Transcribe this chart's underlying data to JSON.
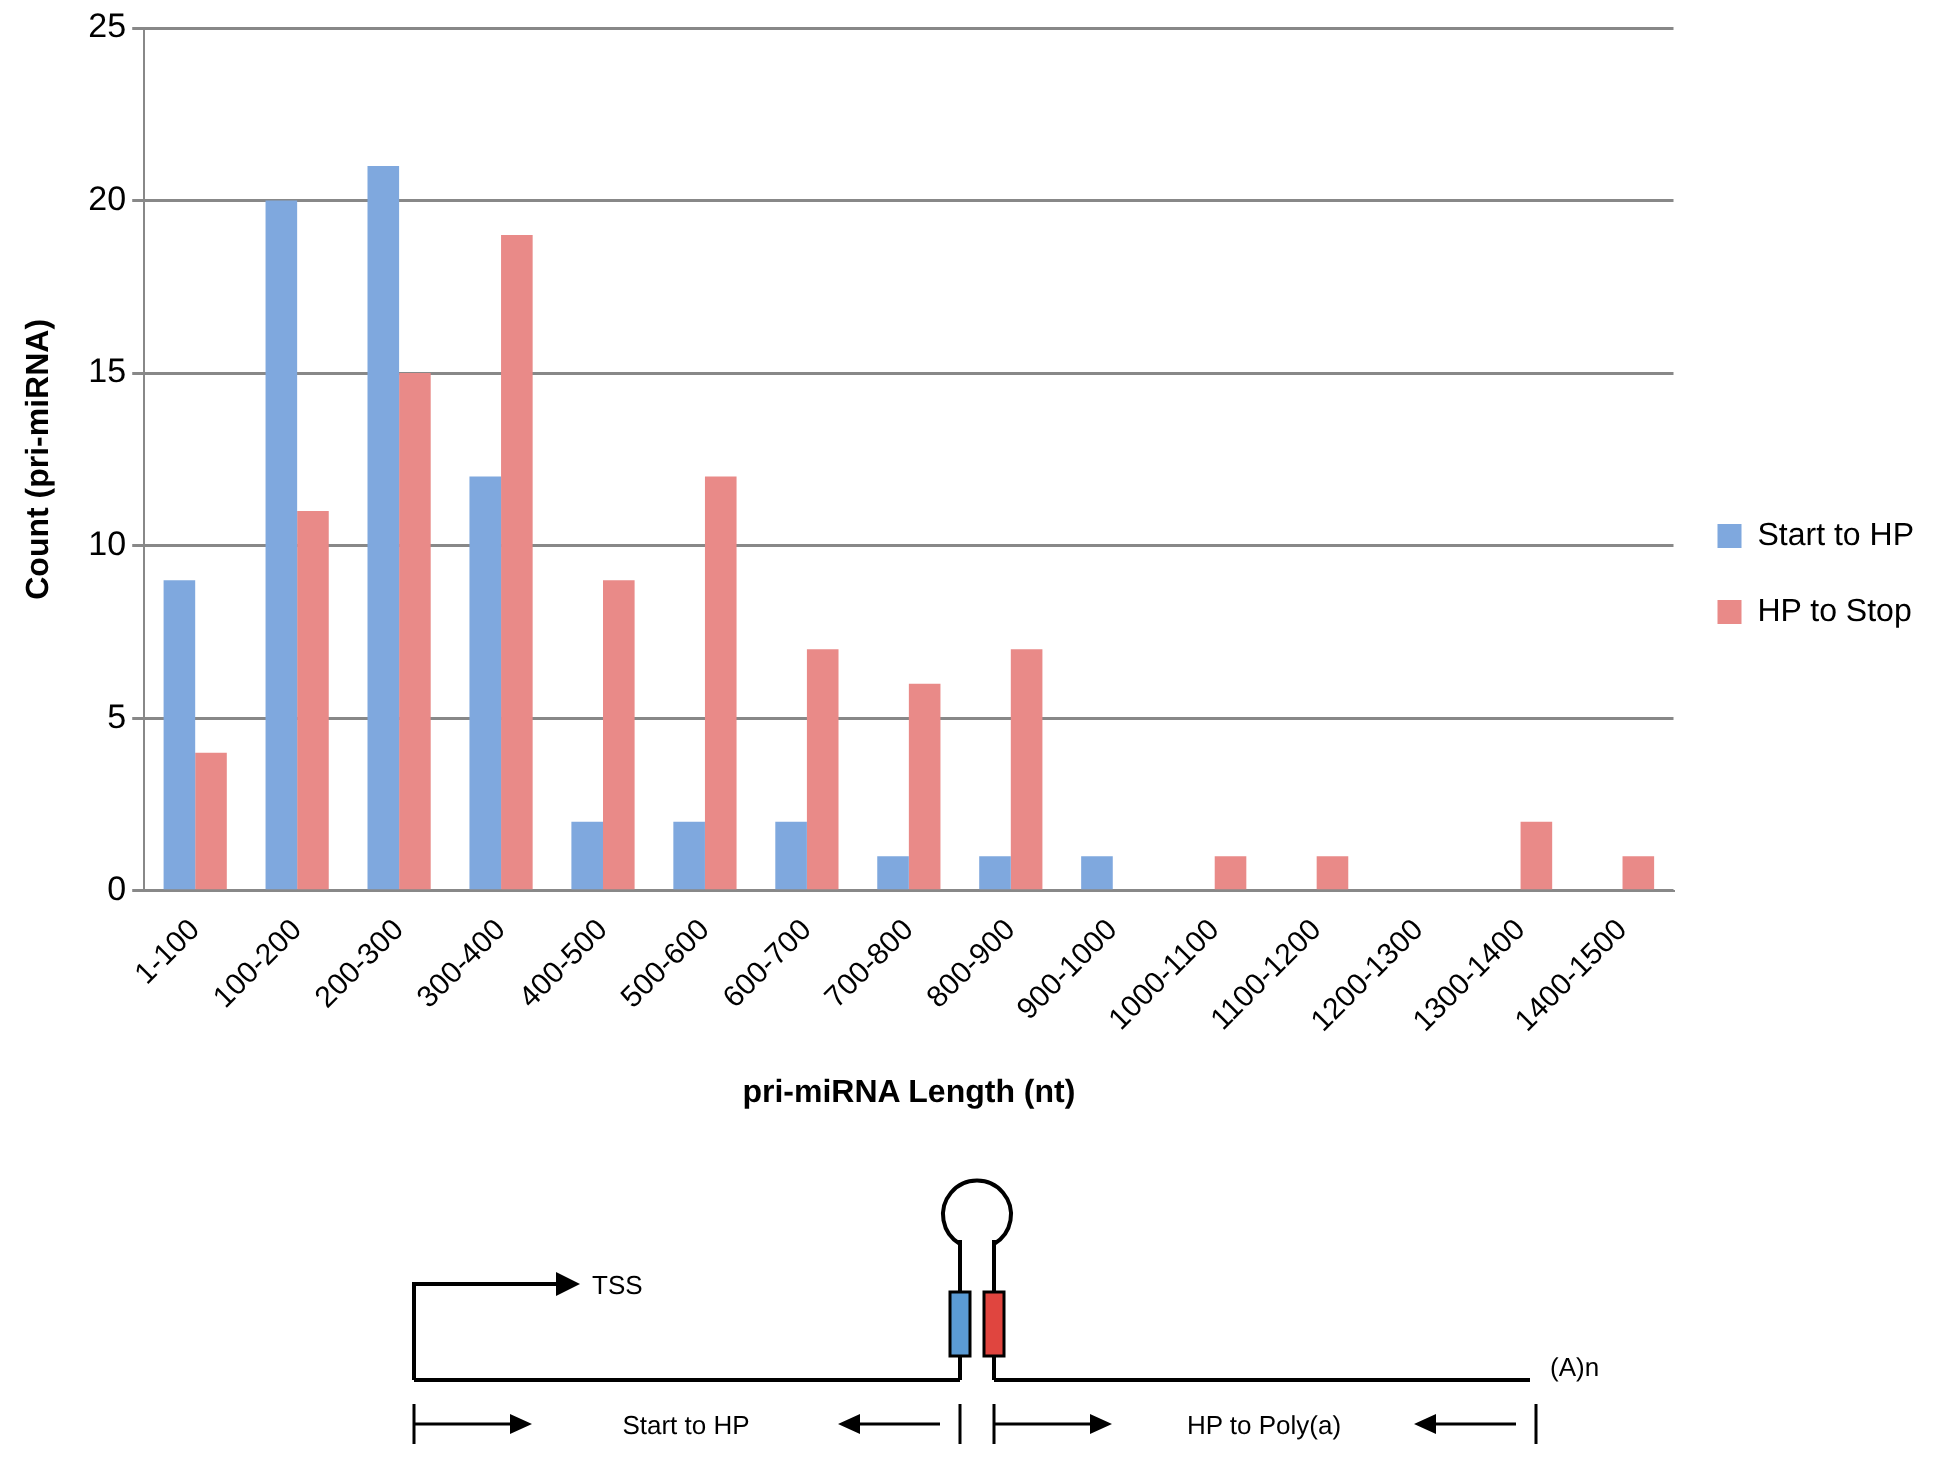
{
  "chart_data": {
    "type": "bar",
    "xlabel": "pri-miRNA Length (nt)",
    "ylabel": "Count (pri-miRNA)",
    "categories": [
      "1-100",
      "100-200",
      "200-300",
      "300-400",
      "400-500",
      "500-600",
      "600-700",
      "700-800",
      "800-900",
      "900-1000",
      "1000-1100",
      "1100-1200",
      "1200-1300",
      "1300-1400",
      "1400-1500"
    ],
    "series": [
      {
        "name": "Start to HP",
        "color": "#7fa8de",
        "values": [
          9,
          20,
          21,
          12,
          2,
          2,
          2,
          1,
          1,
          1,
          0,
          0,
          0,
          0,
          0
        ]
      },
      {
        "name": "HP to Stop",
        "color": "#e98a88",
        "values": [
          4,
          11,
          15,
          19,
          9,
          12,
          7,
          6,
          7,
          0,
          1,
          1,
          0,
          2,
          1
        ]
      }
    ],
    "ylim": [
      0,
      25
    ],
    "yticks": [
      0,
      5,
      10,
      15,
      20,
      25
    ],
    "grid": "y",
    "legend": "right",
    "annotations": [
      "TSS",
      "(A)n",
      "Start to HP",
      "HP to Poly(a)"
    ]
  }
}
